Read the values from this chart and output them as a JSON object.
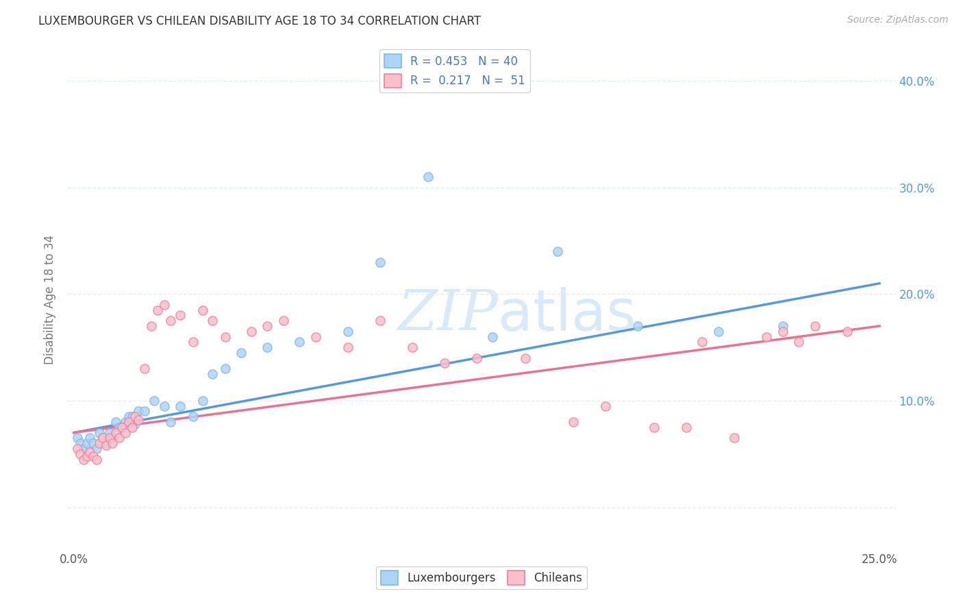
{
  "title": "LUXEMBOURGER VS CHILEAN DISABILITY AGE 18 TO 34 CORRELATION CHART",
  "source_text": "Source: ZipAtlas.com",
  "ylabel": "Disability Age 18 to 34",
  "xlim": [
    -0.002,
    0.255
  ],
  "ylim": [
    -0.04,
    0.43
  ],
  "x_ticks": [
    0.0,
    0.25
  ],
  "x_tick_labels": [
    "0.0%",
    "25.0%"
  ],
  "y_ticks": [
    0.0,
    0.1,
    0.2,
    0.3,
    0.4
  ],
  "y_tick_labels_right": [
    "",
    "10.0%",
    "20.0%",
    "30.0%",
    "40.0%"
  ],
  "lux_scatter_color": "#AED4F5",
  "lux_edge_color": "#7EB6E8",
  "chile_scatter_color": "#F9C0CC",
  "chile_edge_color": "#F08098",
  "trend_lux_color": "#5599DD",
  "trend_chile_color": "#EE7090",
  "R_lux": 0.453,
  "N_lux": 40,
  "R_chile": 0.217,
  "N_chile": 51,
  "background_color": "#ffffff",
  "grid_color": "#DDEEFF",
  "watermark_color": "#D8EAF8",
  "lux_x": [
    0.001,
    0.002,
    0.003,
    0.004,
    0.005,
    0.006,
    0.007,
    0.008,
    0.009,
    0.01,
    0.011,
    0.012,
    0.013,
    0.014,
    0.015,
    0.016,
    0.017,
    0.018,
    0.019,
    0.02,
    0.022,
    0.025,
    0.028,
    0.03,
    0.033,
    0.037,
    0.04,
    0.043,
    0.047,
    0.052,
    0.06,
    0.07,
    0.085,
    0.095,
    0.11,
    0.13,
    0.15,
    0.175,
    0.2,
    0.22
  ],
  "lux_y": [
    0.065,
    0.06,
    0.055,
    0.06,
    0.065,
    0.06,
    0.055,
    0.07,
    0.065,
    0.06,
    0.07,
    0.065,
    0.08,
    0.075,
    0.075,
    0.08,
    0.085,
    0.085,
    0.078,
    0.09,
    0.09,
    0.1,
    0.095,
    0.08,
    0.095,
    0.085,
    0.1,
    0.125,
    0.13,
    0.145,
    0.15,
    0.155,
    0.165,
    0.23,
    0.31,
    0.16,
    0.24,
    0.17,
    0.165,
    0.17
  ],
  "chile_x": [
    0.001,
    0.002,
    0.003,
    0.004,
    0.005,
    0.006,
    0.007,
    0.008,
    0.009,
    0.01,
    0.011,
    0.012,
    0.013,
    0.014,
    0.015,
    0.016,
    0.017,
    0.018,
    0.019,
    0.02,
    0.022,
    0.024,
    0.026,
    0.028,
    0.03,
    0.033,
    0.037,
    0.04,
    0.043,
    0.047,
    0.055,
    0.06,
    0.065,
    0.075,
    0.085,
    0.095,
    0.105,
    0.115,
    0.125,
    0.14,
    0.155,
    0.165,
    0.18,
    0.19,
    0.195,
    0.205,
    0.215,
    0.22,
    0.225,
    0.23,
    0.24
  ],
  "chile_y": [
    0.055,
    0.05,
    0.045,
    0.048,
    0.052,
    0.048,
    0.045,
    0.06,
    0.065,
    0.058,
    0.065,
    0.06,
    0.07,
    0.065,
    0.075,
    0.07,
    0.08,
    0.075,
    0.085,
    0.082,
    0.13,
    0.17,
    0.185,
    0.19,
    0.175,
    0.18,
    0.155,
    0.185,
    0.175,
    0.16,
    0.165,
    0.17,
    0.175,
    0.16,
    0.15,
    0.175,
    0.15,
    0.135,
    0.14,
    0.14,
    0.08,
    0.095,
    0.075,
    0.075,
    0.155,
    0.065,
    0.16,
    0.165,
    0.155,
    0.17,
    0.165
  ],
  "trend_lux_x0": 0.0,
  "trend_lux_y0": 0.07,
  "trend_lux_x1": 0.25,
  "trend_lux_y1": 0.21,
  "trend_chile_x0": 0.0,
  "trend_chile_y0": 0.07,
  "trend_chile_x1": 0.25,
  "trend_chile_y1": 0.17
}
